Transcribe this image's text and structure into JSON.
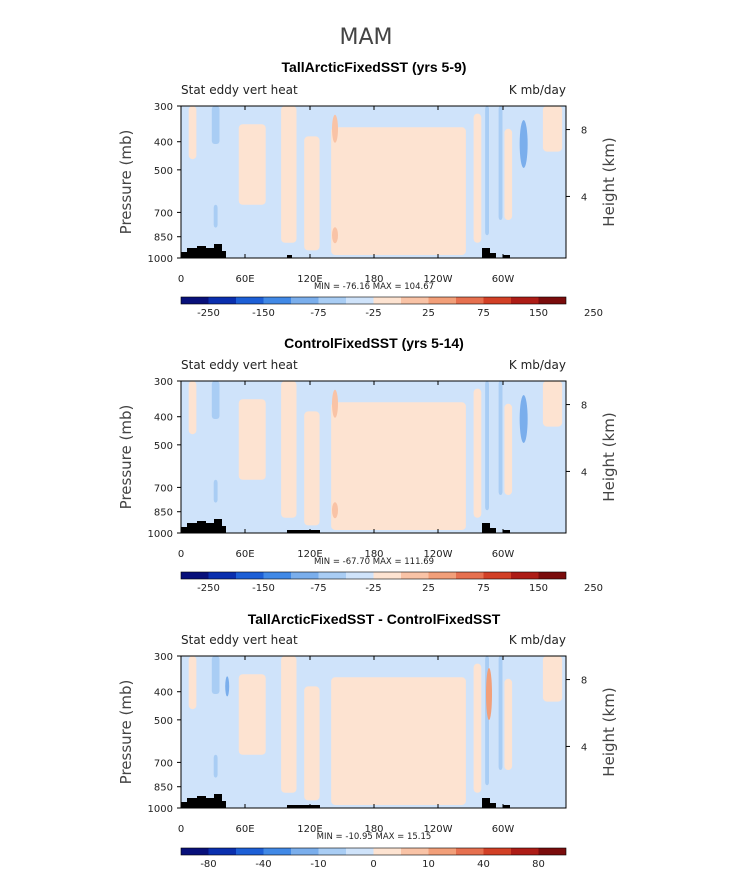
{
  "figure": {
    "season": "MAM"
  },
  "colors": {
    "palette": [
      "#08107a",
      "#0a2fae",
      "#1d5fd6",
      "#4189e6",
      "#7aaeec",
      "#a9cdf4",
      "#cfe3fa",
      "#fde3d1",
      "#f9c3a6",
      "#f29f79",
      "#e6704f",
      "#d24026",
      "#ad1c16",
      "#7a0c0c"
    ],
    "background": "#cfe3fa",
    "warm": "#fde3d1",
    "topography": "#000000"
  },
  "chart_data": [
    {
      "type": "heatmap",
      "title": "TallArcticFixedSST (yrs 5-9)",
      "left_label": "Stat eddy vert heat",
      "right_label": "K mb/day",
      "ylabel": "Pressure (mb)",
      "ylabel_right": "Height (km)",
      "xticks": [
        "0",
        "60E",
        "120E",
        "180",
        "120W",
        "60W"
      ],
      "yticks": [
        "300",
        "400",
        "500",
        "700",
        "850",
        "1000"
      ],
      "yticks_right": [
        "8",
        "4"
      ],
      "min_max": "MIN = -76.16   MAX = 104.67",
      "colorbar_labels": [
        "-250",
        "-150",
        "-75",
        "-25",
        "25",
        "75",
        "150",
        "250"
      ]
    },
    {
      "type": "heatmap",
      "title": "ControlFixedSST (yrs 5-14)",
      "left_label": "Stat eddy vert heat",
      "right_label": "K mb/day",
      "ylabel": "Pressure (mb)",
      "ylabel_right": "Height (km)",
      "xticks": [
        "0",
        "60E",
        "120E",
        "180",
        "120W",
        "60W"
      ],
      "yticks": [
        "300",
        "400",
        "500",
        "700",
        "850",
        "1000"
      ],
      "yticks_right": [
        "8",
        "4"
      ],
      "min_max": "MIN = -67.70   MAX = 111.69",
      "colorbar_labels": [
        "-250",
        "-150",
        "-75",
        "-25",
        "25",
        "75",
        "150",
        "250"
      ]
    },
    {
      "type": "heatmap",
      "title": "TallArcticFixedSST - ControlFixedSST",
      "left_label": "Stat eddy vert heat",
      "right_label": "K mb/day",
      "ylabel": "Pressure (mb)",
      "ylabel_right": "Height (km)",
      "xticks": [
        "0",
        "60E",
        "120E",
        "180",
        "120W",
        "60W"
      ],
      "yticks": [
        "300",
        "400",
        "500",
        "700",
        "850",
        "1000"
      ],
      "yticks_right": [
        "8",
        "4"
      ],
      "min_max": "MIN = -10.95   MAX = 15.15",
      "colorbar_labels": [
        "-80",
        "-40",
        "-10",
        "0",
        "10",
        "40",
        "80"
      ]
    }
  ]
}
